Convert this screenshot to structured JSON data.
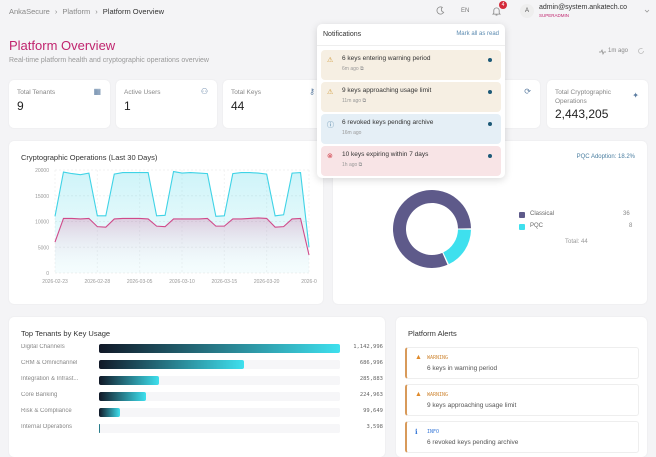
{
  "breadcrumb": [
    "AnkaSecure",
    "Platform",
    "Platform Overview"
  ],
  "header": {
    "theme_icon": "moon-icon",
    "language": "EN",
    "notification_count": "4",
    "avatar_initial": "A",
    "user_email": "admin@system.ankatech.co",
    "user_role": "SUPERADMIN"
  },
  "page": {
    "title": "Platform Overview",
    "subtitle": "Real-time platform health and cryptographic operations overview",
    "refresh": "1m ago"
  },
  "stats": [
    {
      "label": "Total Tenants",
      "value": "9",
      "icon": "building-icon"
    },
    {
      "label": "Active Users",
      "value": "1",
      "icon": "users-icon"
    },
    {
      "label": "Total Keys",
      "value": "44",
      "icon": "key-icon"
    },
    {
      "label": "",
      "value": "",
      "icon": "refresh-icon"
    },
    {
      "label": "Total Cryptographic Operations",
      "value": "2,443,205",
      "icon": "sparkle-icon"
    }
  ],
  "notifications": {
    "title": "Notifications",
    "mark_all": "Mark all as read",
    "items": [
      {
        "text": "6 keys entering warning period",
        "time": "6m ago",
        "type": "warning"
      },
      {
        "text": "9 keys approaching usage limit",
        "time": "11m ago",
        "type": "warning"
      },
      {
        "text": "6 revoked keys pending archive",
        "time": "16m ago",
        "type": "info"
      },
      {
        "text": "10 keys expiring within 7 days",
        "time": "1h ago",
        "type": "error"
      }
    ]
  },
  "colors": {
    "accent": "#c0246e",
    "cyan": "#3fd3e6",
    "pink": "#d04a8a",
    "classical": "#5e5a8a",
    "pqc": "#3ee0ee"
  },
  "chart_data": [
    {
      "type": "area",
      "title": "Cryptographic Operations (Last 30 Days)",
      "ylim": [
        0,
        20000
      ],
      "yticks": [
        "0",
        "5000",
        "10000",
        "15000",
        "20000"
      ],
      "xticks": [
        "2026-02-23",
        "2026-02-28",
        "2026-03-05",
        "2026-03-10",
        "2026-03-15",
        "2026-03-20",
        "2026-0"
      ],
      "x_start": "2026-02-23",
      "x_end": "2026-03-25",
      "grid": true,
      "series": [
        {
          "color": "#3fd3e6",
          "values": [
            11000,
            19600,
            19300,
            19100,
            19400,
            11100,
            11100,
            19200,
            19500,
            19500,
            19500,
            19500,
            11100,
            11200,
            19700,
            19400,
            19500,
            19400,
            19300,
            11000,
            11100,
            19300,
            19500,
            19500,
            19400,
            19200,
            11100,
            11300,
            19400,
            19500,
            5000
          ]
        },
        {
          "color": "#d04a8a",
          "values": [
            6000,
            10600,
            10600,
            10500,
            10600,
            9000,
            8900,
            10500,
            10600,
            10600,
            10600,
            10500,
            9100,
            9000,
            10500,
            10500,
            10500,
            10500,
            10600,
            9100,
            9100,
            10500,
            10500,
            10600,
            10700,
            10600,
            8900,
            9000,
            10500,
            10600,
            3500
          ]
        }
      ]
    },
    {
      "type": "pie",
      "donut": true,
      "subtitle": "PQC Adoption: 18.2%",
      "categories": [
        "Classical",
        "PQC"
      ],
      "values": [
        36,
        8
      ],
      "total_label": "Total: 44"
    },
    {
      "type": "bar",
      "orientation": "horizontal",
      "title": "Top Tenants by Key Usage",
      "categories": [
        "Digital Channels",
        "CRM & Omnichannel",
        "Integration & Infrast...",
        "Core Banking",
        "Risk & Compliance",
        "Internal Operations"
      ],
      "values": [
        1142996,
        686996,
        285883,
        224963,
        99649,
        3598
      ],
      "labels": [
        "1,142,996",
        "686,996",
        "285,883",
        "224,963",
        "99,649",
        "3,598"
      ]
    }
  ],
  "alerts": {
    "title": "Platform Alerts",
    "items": [
      {
        "level": "WARNING",
        "text": "6 keys in warning period"
      },
      {
        "level": "WARNING",
        "text": "9 keys approaching usage limit"
      },
      {
        "level": "INFO",
        "text": "6 revoked keys pending archive"
      }
    ]
  }
}
